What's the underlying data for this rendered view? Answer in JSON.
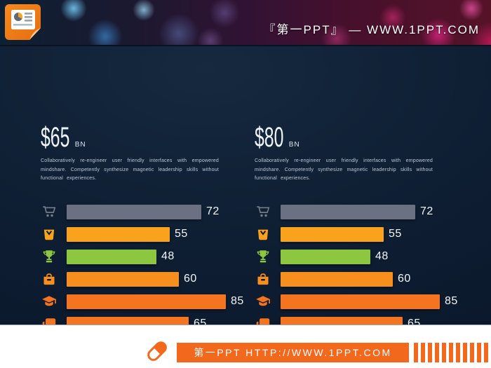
{
  "header": {
    "brand_text": "『第一PPT』 — WWW.1PPT.COM",
    "logo": "powerpoint-document-icon"
  },
  "footer": {
    "site_text": "第一PPT HTTP://WWW.1PPT.COM",
    "stripe_count": 11
  },
  "colors": {
    "accent_orange": "#f2691e",
    "background_navy": "#0e1e33",
    "footer_white": "#ffffff"
  },
  "chart_data": [
    {
      "type": "bar",
      "orientation": "horizontal",
      "title": "$65",
      "title_unit": "BN",
      "description": "Collaboratively  re-engineer  user friendly  interfaces  with empowered mindshare.  Competently synthesize  magnetic  leadership  skills  without functional  experiences.",
      "categories": [
        "shopping-cart",
        "shopping-bag",
        "trophy",
        "toolbox",
        "graduation-cap",
        "chat-bubbles"
      ],
      "values": [
        72,
        55,
        48,
        60,
        85,
        65
      ],
      "bar_colors": [
        "#6b7180",
        "#f9a21b",
        "#8dc63f",
        "#f78f1e",
        "#f4741f",
        "#f4741f"
      ],
      "icon_colors": [
        "#747b89",
        "#f9a21b",
        "#8dc63f",
        "#f78f1e",
        "#f4741f",
        "#f4741f"
      ],
      "xlim": [
        0,
        100
      ],
      "grid": false,
      "legend": false
    },
    {
      "type": "bar",
      "orientation": "horizontal",
      "title": "$80",
      "title_unit": "BN",
      "description": "Collaboratively  re-engineer  user friendly  interfaces  with empowered mindshare.  Competently synthesize  magnetic  leadership  skills  without functional  experiences.",
      "categories": [
        "shopping-cart",
        "shopping-bag",
        "trophy",
        "toolbox",
        "graduation-cap",
        "chat-bubbles"
      ],
      "values": [
        72,
        55,
        48,
        60,
        85,
        65
      ],
      "bar_colors": [
        "#6b7180",
        "#f9a21b",
        "#8dc63f",
        "#f78f1e",
        "#f4741f",
        "#f4741f"
      ],
      "icon_colors": [
        "#747b89",
        "#f9a21b",
        "#8dc63f",
        "#f78f1e",
        "#f4741f",
        "#f4741f"
      ],
      "xlim": [
        0,
        100
      ],
      "grid": false,
      "legend": false
    }
  ]
}
